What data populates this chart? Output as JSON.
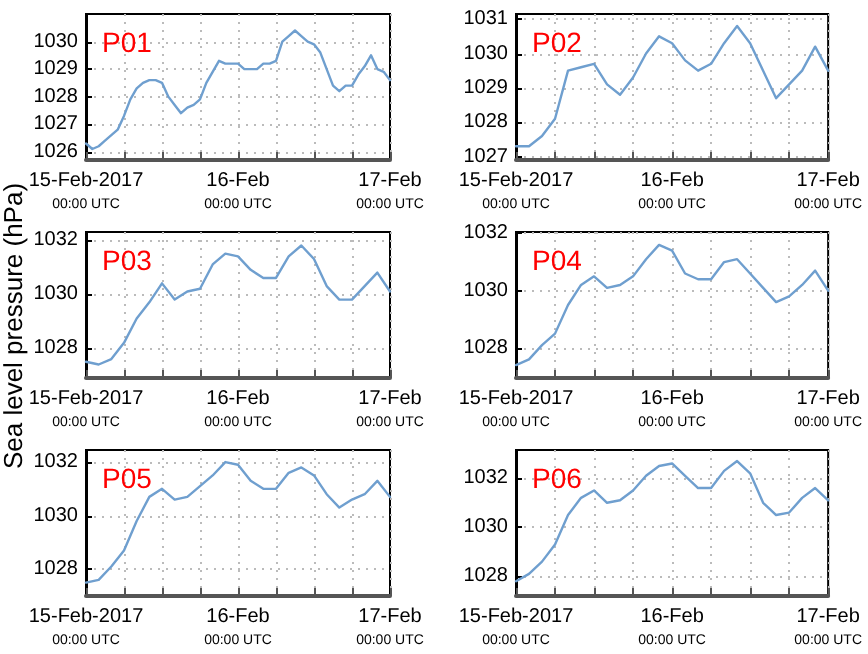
{
  "chart_data": [
    {
      "type": "line",
      "title": "P01",
      "x": [
        "2017-02-15T00:00",
        "2017-02-15T01:00",
        "2017-02-15T02:00",
        "2017-02-15T03:00",
        "2017-02-15T04:00",
        "2017-02-15T05:00",
        "2017-02-15T06:00",
        "2017-02-15T07:00",
        "2017-02-15T08:00",
        "2017-02-15T09:00",
        "2017-02-15T10:00",
        "2017-02-15T11:00",
        "2017-02-15T12:00",
        "2017-02-15T13:00",
        "2017-02-15T14:00",
        "2017-02-15T15:00",
        "2017-02-15T16:00",
        "2017-02-15T17:00",
        "2017-02-15T18:00",
        "2017-02-15T19:00",
        "2017-02-15T20:00",
        "2017-02-15T21:00",
        "2017-02-15T22:00",
        "2017-02-15T23:00",
        "2017-02-16T00:00",
        "2017-02-16T01:00",
        "2017-02-16T02:00",
        "2017-02-16T03:00",
        "2017-02-16T04:00",
        "2017-02-16T05:00",
        "2017-02-16T06:00",
        "2017-02-16T07:00",
        "2017-02-16T08:00",
        "2017-02-16T09:00",
        "2017-02-16T10:00",
        "2017-02-16T11:00",
        "2017-02-16T12:00",
        "2017-02-16T13:00",
        "2017-02-16T14:00",
        "2017-02-16T15:00",
        "2017-02-16T16:00",
        "2017-02-16T17:00",
        "2017-02-16T18:00",
        "2017-02-16T19:00",
        "2017-02-16T20:00",
        "2017-02-16T21:00",
        "2017-02-16T22:00",
        "2017-02-16T23:00",
        "2017-02-17T00:00"
      ],
      "series": [
        {
          "color": "#6f9fcf",
          "values": [
            1026.3,
            1026.1,
            1026.2,
            1026.4,
            1026.6,
            1026.8,
            1027.3,
            1027.9,
            1028.3,
            1028.5,
            1028.6,
            1028.6,
            1028.5,
            1028.0,
            1027.7,
            1027.4,
            1027.6,
            1027.7,
            1027.9,
            1028.5,
            1028.9,
            1029.3,
            1029.2,
            1029.2,
            1029.2,
            1029.0,
            1029.0,
            1029.0,
            1029.2,
            1029.2,
            1029.3,
            1030.0,
            1030.2,
            1030.4,
            1030.2,
            1030.0,
            1029.9,
            1029.6,
            1029.0,
            1028.4,
            1028.2,
            1028.4,
            1028.4,
            1028.8,
            1029.1,
            1029.5,
            1029.0,
            1028.9,
            1028.6
          ]
        }
      ],
      "xlim": [
        "2017-02-15T00:00",
        "2017-02-17T00:00"
      ],
      "xticks": [
        {
          "value": "2017-02-15T00:00",
          "label": "15-Feb-2017\n00:00 UTC"
        },
        {
          "value": "2017-02-15T06:00",
          "label": null
        },
        {
          "value": "2017-02-15T12:00",
          "label": null
        },
        {
          "value": "2017-02-15T18:00",
          "label": null
        },
        {
          "value": "2017-02-16T00:00",
          "label": "16-Feb\n00:00 UTC"
        },
        {
          "value": "2017-02-16T06:00",
          "label": null
        },
        {
          "value": "2017-02-16T12:00",
          "label": null
        },
        {
          "value": "2017-02-16T18:00",
          "label": null
        },
        {
          "value": "2017-02-17T00:00",
          "label": "17-Feb\n00:00 UTC"
        }
      ],
      "ylim": [
        1025.7,
        1031
      ],
      "yticks": [
        1026,
        1027,
        1028,
        1029,
        1030
      ],
      "grid": true
    },
    {
      "type": "line",
      "title": "P02",
      "x": [
        "2017-02-15T00:00",
        "2017-02-15T02:00",
        "2017-02-15T04:00",
        "2017-02-15T06:00",
        "2017-02-15T08:00",
        "2017-02-15T10:00",
        "2017-02-15T12:00",
        "2017-02-15T14:00",
        "2017-02-15T16:00",
        "2017-02-15T18:00",
        "2017-02-15T20:00",
        "2017-02-15T22:00",
        "2017-02-16T00:00",
        "2017-02-16T02:00",
        "2017-02-16T04:00",
        "2017-02-16T06:00",
        "2017-02-16T08:00",
        "2017-02-16T10:00",
        "2017-02-16T12:00",
        "2017-02-16T14:00",
        "2017-02-16T16:00",
        "2017-02-16T18:00",
        "2017-02-16T20:00",
        "2017-02-16T22:00",
        "2017-02-17T00:00"
      ],
      "series": [
        {
          "color": "#6f9fcf",
          "values": [
            1027.3,
            1027.3,
            1027.6,
            1028.1,
            1029.5,
            1029.6,
            1029.7,
            1029.1,
            1028.8,
            1029.3,
            1030.0,
            1030.5,
            1030.3,
            1029.8,
            1029.5,
            1029.7,
            1030.3,
            1030.8,
            1030.3,
            1029.5,
            1028.7,
            1029.1,
            1029.5,
            1030.2,
            1029.5
          ]
        }
      ],
      "xlim": [
        "2017-02-15T00:00",
        "2017-02-17T00:00"
      ],
      "xticks": [
        {
          "value": "2017-02-15T00:00",
          "label": "15-Feb-2017\n00:00 UTC"
        },
        {
          "value": "2017-02-15T06:00",
          "label": null
        },
        {
          "value": "2017-02-15T12:00",
          "label": null
        },
        {
          "value": "2017-02-15T18:00",
          "label": null
        },
        {
          "value": "2017-02-16T00:00",
          "label": "16-Feb\n00:00 UTC"
        },
        {
          "value": "2017-02-16T06:00",
          "label": null
        },
        {
          "value": "2017-02-16T12:00",
          "label": null
        },
        {
          "value": "2017-02-16T18:00",
          "label": null
        },
        {
          "value": "2017-02-17T00:00",
          "label": "17-Feb\n00:00 UTC"
        }
      ],
      "ylim": [
        1026.9,
        1031.15
      ],
      "yticks": [
        1027,
        1028,
        1029,
        1030,
        1031
      ],
      "grid": true
    },
    {
      "type": "line",
      "title": "P03",
      "ylabel": "Sea level pressure (hPa)",
      "x": [
        "2017-02-15T00:00",
        "2017-02-15T02:00",
        "2017-02-15T04:00",
        "2017-02-15T06:00",
        "2017-02-15T08:00",
        "2017-02-15T10:00",
        "2017-02-15T12:00",
        "2017-02-15T14:00",
        "2017-02-15T16:00",
        "2017-02-15T18:00",
        "2017-02-15T20:00",
        "2017-02-15T22:00",
        "2017-02-16T00:00",
        "2017-02-16T02:00",
        "2017-02-16T04:00",
        "2017-02-16T06:00",
        "2017-02-16T08:00",
        "2017-02-16T10:00",
        "2017-02-16T12:00",
        "2017-02-16T14:00",
        "2017-02-16T16:00",
        "2017-02-16T18:00",
        "2017-02-16T20:00",
        "2017-02-16T22:00",
        "2017-02-17T00:00"
      ],
      "series": [
        {
          "color": "#6f9fcf",
          "values": [
            1027.5,
            1027.4,
            1027.6,
            1028.2,
            1029.1,
            1029.7,
            1030.4,
            1029.8,
            1030.1,
            1030.2,
            1031.1,
            1031.5,
            1031.4,
            1030.9,
            1030.6,
            1030.6,
            1031.4,
            1031.8,
            1031.3,
            1030.3,
            1029.8,
            1029.8,
            1030.3,
            1030.8,
            1030.1
          ]
        }
      ],
      "xlim": [
        "2017-02-15T00:00",
        "2017-02-17T00:00"
      ],
      "xticks": [
        {
          "value": "2017-02-15T00:00",
          "label": "15-Feb-2017\n00:00 UTC"
        },
        {
          "value": "2017-02-15T06:00",
          "label": null
        },
        {
          "value": "2017-02-15T12:00",
          "label": null
        },
        {
          "value": "2017-02-15T18:00",
          "label": null
        },
        {
          "value": "2017-02-16T00:00",
          "label": "16-Feb\n00:00 UTC"
        },
        {
          "value": "2017-02-16T06:00",
          "label": null
        },
        {
          "value": "2017-02-16T12:00",
          "label": null
        },
        {
          "value": "2017-02-16T18:00",
          "label": null
        },
        {
          "value": "2017-02-17T00:00",
          "label": "17-Feb\n00:00 UTC"
        }
      ],
      "ylim": [
        1026.9,
        1032.3
      ],
      "yticks": [
        1028,
        1030,
        1032
      ],
      "grid": true
    },
    {
      "type": "line",
      "title": "P04",
      "x": [
        "2017-02-15T00:00",
        "2017-02-15T02:00",
        "2017-02-15T04:00",
        "2017-02-15T06:00",
        "2017-02-15T08:00",
        "2017-02-15T10:00",
        "2017-02-15T12:00",
        "2017-02-15T14:00",
        "2017-02-15T16:00",
        "2017-02-15T18:00",
        "2017-02-15T20:00",
        "2017-02-15T22:00",
        "2017-02-16T00:00",
        "2017-02-16T02:00",
        "2017-02-16T04:00",
        "2017-02-16T06:00",
        "2017-02-16T08:00",
        "2017-02-16T10:00",
        "2017-02-16T12:00",
        "2017-02-16T14:00",
        "2017-02-16T16:00",
        "2017-02-16T18:00",
        "2017-02-16T20:00",
        "2017-02-16T22:00",
        "2017-02-17T00:00"
      ],
      "series": [
        {
          "color": "#6f9fcf",
          "values": [
            1027.4,
            1027.6,
            1028.1,
            1028.5,
            1029.5,
            1030.2,
            1030.5,
            1030.1,
            1030.2,
            1030.5,
            1031.1,
            1031.6,
            1031.4,
            1030.6,
            1030.4,
            1030.4,
            1031.0,
            1031.1,
            1030.6,
            1030.1,
            1029.6,
            1029.8,
            1030.2,
            1030.7,
            1030.0
          ]
        }
      ],
      "xlim": [
        "2017-02-15T00:00",
        "2017-02-17T00:00"
      ],
      "xticks": [
        {
          "value": "2017-02-15T00:00",
          "label": "15-Feb-2017\n00:00 UTC"
        },
        {
          "value": "2017-02-15T06:00",
          "label": null
        },
        {
          "value": "2017-02-15T12:00",
          "label": null
        },
        {
          "value": "2017-02-15T18:00",
          "label": null
        },
        {
          "value": "2017-02-16T00:00",
          "label": "16-Feb\n00:00 UTC"
        },
        {
          "value": "2017-02-16T06:00",
          "label": null
        },
        {
          "value": "2017-02-16T12:00",
          "label": null
        },
        {
          "value": "2017-02-16T18:00",
          "label": null
        },
        {
          "value": "2017-02-17T00:00",
          "label": "17-Feb\n00:00 UTC"
        }
      ],
      "ylim": [
        1026.95,
        1032.05
      ],
      "yticks": [
        1028,
        1030,
        1032
      ],
      "grid": true
    },
    {
      "type": "line",
      "title": "P05",
      "x": [
        "2017-02-15T00:00",
        "2017-02-15T02:00",
        "2017-02-15T04:00",
        "2017-02-15T06:00",
        "2017-02-15T08:00",
        "2017-02-15T10:00",
        "2017-02-15T12:00",
        "2017-02-15T14:00",
        "2017-02-15T16:00",
        "2017-02-15T18:00",
        "2017-02-15T20:00",
        "2017-02-15T22:00",
        "2017-02-16T00:00",
        "2017-02-16T02:00",
        "2017-02-16T04:00",
        "2017-02-16T06:00",
        "2017-02-16T08:00",
        "2017-02-16T10:00",
        "2017-02-16T12:00",
        "2017-02-16T14:00",
        "2017-02-16T16:00",
        "2017-02-16T18:00",
        "2017-02-16T20:00",
        "2017-02-16T22:00",
        "2017-02-17T00:00"
      ],
      "series": [
        {
          "color": "#6f9fcf",
          "values": [
            1027.5,
            1027.6,
            1028.1,
            1028.7,
            1029.8,
            1030.7,
            1031.0,
            1030.6,
            1030.7,
            1031.1,
            1031.5,
            1032.0,
            1031.9,
            1031.3,
            1031.0,
            1031.0,
            1031.6,
            1031.8,
            1031.5,
            1030.8,
            1030.3,
            1030.6,
            1030.8,
            1031.3,
            1030.7
          ]
        }
      ],
      "xlim": [
        "2017-02-15T00:00",
        "2017-02-17T00:00"
      ],
      "xticks": [
        {
          "value": "2017-02-15T00:00",
          "label": "15-Feb-2017\n00:00 UTC"
        },
        {
          "value": "2017-02-15T06:00",
          "label": null
        },
        {
          "value": "2017-02-15T12:00",
          "label": null
        },
        {
          "value": "2017-02-15T18:00",
          "label": null
        },
        {
          "value": "2017-02-16T00:00",
          "label": "16-Feb\n00:00 UTC"
        },
        {
          "value": "2017-02-16T06:00",
          "label": null
        },
        {
          "value": "2017-02-16T12:00",
          "label": null
        },
        {
          "value": "2017-02-16T18:00",
          "label": null
        },
        {
          "value": "2017-02-17T00:00",
          "label": "17-Feb\n00:00 UTC"
        }
      ],
      "ylim": [
        1027,
        1032.45
      ],
      "yticks": [
        1028,
        1030,
        1032
      ],
      "grid": true
    },
    {
      "type": "line",
      "title": "P06",
      "x": [
        "2017-02-15T00:00",
        "2017-02-15T02:00",
        "2017-02-15T04:00",
        "2017-02-15T06:00",
        "2017-02-15T08:00",
        "2017-02-15T10:00",
        "2017-02-15T12:00",
        "2017-02-15T14:00",
        "2017-02-15T16:00",
        "2017-02-15T18:00",
        "2017-02-15T20:00",
        "2017-02-15T22:00",
        "2017-02-16T00:00",
        "2017-02-16T02:00",
        "2017-02-16T04:00",
        "2017-02-16T06:00",
        "2017-02-16T08:00",
        "2017-02-16T10:00",
        "2017-02-16T12:00",
        "2017-02-16T14:00",
        "2017-02-16T16:00",
        "2017-02-16T18:00",
        "2017-02-16T20:00",
        "2017-02-16T22:00",
        "2017-02-17T00:00"
      ],
      "series": [
        {
          "color": "#6f9fcf",
          "values": [
            1027.8,
            1028.1,
            1028.6,
            1029.3,
            1030.5,
            1031.2,
            1031.5,
            1031.0,
            1031.1,
            1031.5,
            1032.1,
            1032.5,
            1032.6,
            1032.1,
            1031.6,
            1031.6,
            1032.3,
            1032.7,
            1032.2,
            1031.0,
            1030.5,
            1030.6,
            1031.2,
            1031.6,
            1031.1
          ]
        }
      ],
      "xlim": [
        "2017-02-15T00:00",
        "2017-02-17T00:00"
      ],
      "xticks": [
        {
          "value": "2017-02-15T00:00",
          "label": "15-Feb-2017\n00:00 UTC"
        },
        {
          "value": "2017-02-15T06:00",
          "label": null
        },
        {
          "value": "2017-02-15T12:00",
          "label": null
        },
        {
          "value": "2017-02-15T18:00",
          "label": null
        },
        {
          "value": "2017-02-16T00:00",
          "label": "16-Feb\n00:00 UTC"
        },
        {
          "value": "2017-02-16T06:00",
          "label": null
        },
        {
          "value": "2017-02-16T12:00",
          "label": null
        },
        {
          "value": "2017-02-16T18:00",
          "label": null
        },
        {
          "value": "2017-02-17T00:00",
          "label": "17-Feb\n00:00 UTC"
        }
      ],
      "ylim": [
        1027.2,
        1033.15
      ],
      "yticks": [
        1028,
        1030,
        1032
      ],
      "grid": true
    }
  ]
}
